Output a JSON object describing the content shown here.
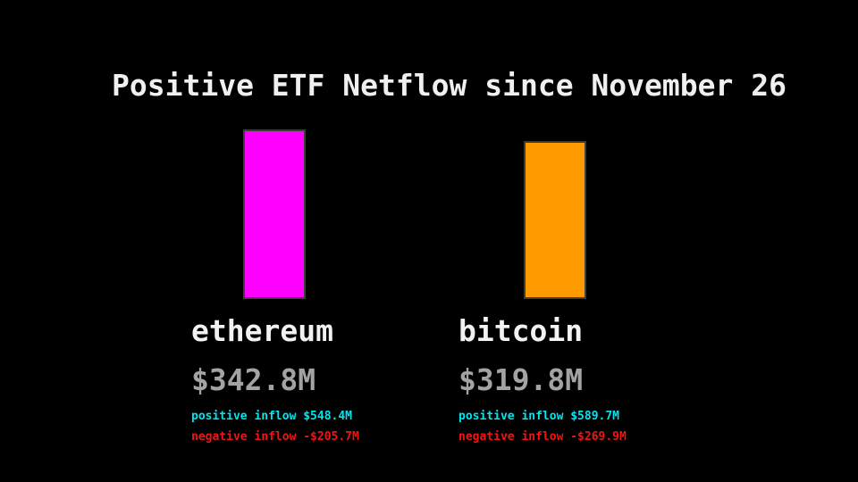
{
  "title": "Positive ETF Netflow since November 26",
  "colors": {
    "background": "#000000",
    "title_text": "#f0f0f0",
    "coin_label_text": "#f2f2f2",
    "netflow_value_text": "#a3a3a3",
    "positive_inflow_text": "#00e5ee",
    "negative_inflow_text": "#f21414",
    "bar_border": "#3d3d3d",
    "ethereum_bar": "#ff00ff",
    "bitcoin_bar": "#ff9900"
  },
  "chart_data": {
    "type": "bar",
    "title": "Positive ETF Netflow since November 26",
    "categories": [
      "ethereum",
      "bitcoin"
    ],
    "values": [
      342.8,
      319.8
    ],
    "unit": "USD millions",
    "ylim": [
      0,
      342.8
    ],
    "grid": false,
    "legend": false,
    "bars": [
      {
        "label": "ethereum",
        "netflow": 342.8,
        "netflow_label": "$342.8M",
        "positive_inflow": 548.4,
        "positive_inflow_label": "positive inflow $548.4M",
        "negative_inflow": -205.7,
        "negative_inflow_label": "negative inflow -$205.7M",
        "color": "#ff00ff"
      },
      {
        "label": "bitcoin",
        "netflow": 319.8,
        "netflow_label": "$319.8M",
        "positive_inflow": 589.7,
        "positive_inflow_label": "positive inflow $589.7M",
        "negative_inflow": -269.9,
        "negative_inflow_label": "negative inflow -$269.9M",
        "color": "#ff9900"
      }
    ]
  }
}
